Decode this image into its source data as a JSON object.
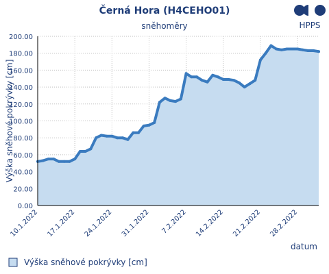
{
  "header": {
    "title": "Černá Hora (H4CEHO01)",
    "subtitle": "sněhoměry",
    "logo_text": "HPPS"
  },
  "colors": {
    "text": "#1f3d78",
    "line": "#3a7bbf",
    "fill": "#c6dcf0",
    "grid": "#bfbfbf",
    "plot_bg": "#ffffff"
  },
  "chart_data": {
    "type": "area",
    "title": "Černá Hora (H4CEHO01)",
    "subtitle": "sněhoměry",
    "xlabel": "datum",
    "ylabel": "Výška sněhové pokrývky [cm]",
    "ylim": [
      0,
      200
    ],
    "xlim": [
      "2022-01-10",
      "2022-03-04"
    ],
    "yticks": [
      "0.00",
      "20.00",
      "40.00",
      "60.00",
      "80.00",
      "100.00",
      "120.00",
      "140.00",
      "160.00",
      "180.00",
      "200.00"
    ],
    "xticks": [
      {
        "date": "2022-01-10",
        "label": "10.1.2022"
      },
      {
        "date": "2022-01-17",
        "label": "17.1.2022"
      },
      {
        "date": "2022-01-24",
        "label": "24.1.2022"
      },
      {
        "date": "2022-01-31",
        "label": "31.1.2022"
      },
      {
        "date": "2022-02-07",
        "label": "7.2.2022"
      },
      {
        "date": "2022-02-14",
        "label": "14.2.2022"
      },
      {
        "date": "2022-02-21",
        "label": "21.2.2022"
      },
      {
        "date": "2022-02-28",
        "label": "28.2.2022"
      }
    ],
    "grid": true,
    "legend": "bottom-left",
    "series": [
      {
        "name": "Výška sněhové pokrývky [cm]",
        "points": [
          [
            "2022-01-10",
            52
          ],
          [
            "2022-01-11",
            53
          ],
          [
            "2022-01-12",
            55
          ],
          [
            "2022-01-13",
            55
          ],
          [
            "2022-01-14",
            52
          ],
          [
            "2022-01-15",
            52
          ],
          [
            "2022-01-16",
            52
          ],
          [
            "2022-01-17",
            55
          ],
          [
            "2022-01-18",
            64
          ],
          [
            "2022-01-19",
            64
          ],
          [
            "2022-01-20",
            67
          ],
          [
            "2022-01-21",
            80
          ],
          [
            "2022-01-22",
            83
          ],
          [
            "2022-01-23",
            82
          ],
          [
            "2022-01-24",
            82
          ],
          [
            "2022-01-25",
            80
          ],
          [
            "2022-01-26",
            80
          ],
          [
            "2022-01-27",
            78
          ],
          [
            "2022-01-28",
            86
          ],
          [
            "2022-01-29",
            86
          ],
          [
            "2022-01-30",
            94
          ],
          [
            "2022-01-31",
            95
          ],
          [
            "2022-02-01",
            98
          ],
          [
            "2022-02-02",
            122
          ],
          [
            "2022-02-03",
            127
          ],
          [
            "2022-02-04",
            124
          ],
          [
            "2022-02-05",
            123
          ],
          [
            "2022-02-06",
            126
          ],
          [
            "2022-02-07",
            156
          ],
          [
            "2022-02-08",
            152
          ],
          [
            "2022-02-09",
            152
          ],
          [
            "2022-02-10",
            148
          ],
          [
            "2022-02-11",
            146
          ],
          [
            "2022-02-12",
            154
          ],
          [
            "2022-02-13",
            152
          ],
          [
            "2022-02-14",
            149
          ],
          [
            "2022-02-15",
            149
          ],
          [
            "2022-02-16",
            148
          ],
          [
            "2022-02-17",
            145
          ],
          [
            "2022-02-18",
            140
          ],
          [
            "2022-02-19",
            144
          ],
          [
            "2022-02-20",
            148
          ],
          [
            "2022-02-21",
            172
          ],
          [
            "2022-02-22",
            180
          ],
          [
            "2022-02-23",
            189
          ],
          [
            "2022-02-24",
            185
          ],
          [
            "2022-02-25",
            184
          ],
          [
            "2022-02-26",
            185
          ],
          [
            "2022-02-27",
            185
          ],
          [
            "2022-02-28",
            185
          ],
          [
            "2022-03-01",
            184
          ],
          [
            "2022-03-02",
            183
          ],
          [
            "2022-03-03",
            183
          ],
          [
            "2022-03-04",
            182
          ]
        ]
      }
    ]
  }
}
